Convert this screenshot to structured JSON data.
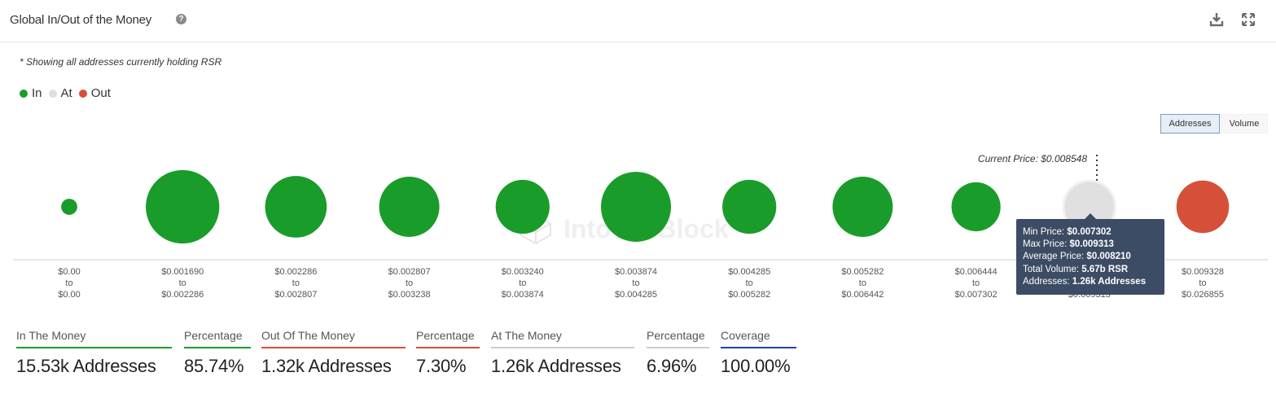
{
  "header": {
    "title": "Global In/Out of the Money",
    "help_icon": "question-circle-icon",
    "download_icon": "download-icon",
    "expand_icon": "expand-icon"
  },
  "note": "* Showing all addresses currently holding RSR",
  "legend": [
    {
      "label": "In",
      "color": "#1a9c2a"
    },
    {
      "label": "At",
      "color": "#e0e0e0"
    },
    {
      "label": "Out",
      "color": "#d64f38"
    }
  ],
  "toggle": {
    "addresses": "Addresses",
    "volume": "Volume",
    "active": "Addresses"
  },
  "watermark": "IntoTheBlock",
  "chart_data": {
    "type": "bubble",
    "current_price_label": "Current Price: $0.008548",
    "current_price": 0.008548,
    "categories": [
      {
        "low": "$0.00",
        "high": "$0.00",
        "status": "in",
        "relative_size": 0.23
      },
      {
        "low": "$0.001690",
        "high": "$0.002286",
        "status": "in",
        "relative_size": 1.05
      },
      {
        "low": "$0.002286",
        "high": "$0.002807",
        "status": "in",
        "relative_size": 0.88
      },
      {
        "low": "$0.002807",
        "high": "$0.003238",
        "status": "in",
        "relative_size": 0.86
      },
      {
        "low": "$0.003240",
        "high": "$0.003874",
        "status": "in",
        "relative_size": 0.77
      },
      {
        "low": "$0.003874",
        "high": "$0.004285",
        "status": "in",
        "relative_size": 1.0
      },
      {
        "low": "$0.004285",
        "high": "$0.005282",
        "status": "in",
        "relative_size": 0.77
      },
      {
        "low": "$0.005282",
        "high": "$0.006442",
        "status": "in",
        "relative_size": 0.86
      },
      {
        "low": "$0.006444",
        "high": "$0.007302",
        "status": "in",
        "relative_size": 0.7
      },
      {
        "low": "$0.007302",
        "high": "$0.009313",
        "status": "at",
        "relative_size": 0.74
      },
      {
        "low": "$0.009328",
        "high": "$0.026855",
        "status": "out",
        "relative_size": 0.75
      }
    ],
    "range_separator": "to",
    "tooltip": {
      "min_label": "Min Price:",
      "min_value": "$0.007302",
      "max_label": "Max Price:",
      "max_value": "$0.009313",
      "avg_label": "Average Price:",
      "avg_value": "$0.008210",
      "vol_label": "Total Volume:",
      "vol_value": "5.67b RSR",
      "addr_label": "Addresses:",
      "addr_value": "1.26k Addresses"
    }
  },
  "stats": [
    {
      "label": "In The Money",
      "value": "15.53k Addresses",
      "color": "#1a9c2a"
    },
    {
      "label": "Percentage",
      "value": "85.74%",
      "color": "#1a9c2a"
    },
    {
      "label": "Out Of The Money",
      "value": "1.32k Addresses",
      "color": "#d64f38"
    },
    {
      "label": "Percentage",
      "value": "7.30%",
      "color": "#d64f38"
    },
    {
      "label": "At The Money",
      "value": "1.26k Addresses",
      "color": "#cccccc"
    },
    {
      "label": "Percentage",
      "value": "6.96%",
      "color": "#cccccc"
    },
    {
      "label": "Coverage",
      "value": "100.00%",
      "color": "#2340b8"
    }
  ]
}
